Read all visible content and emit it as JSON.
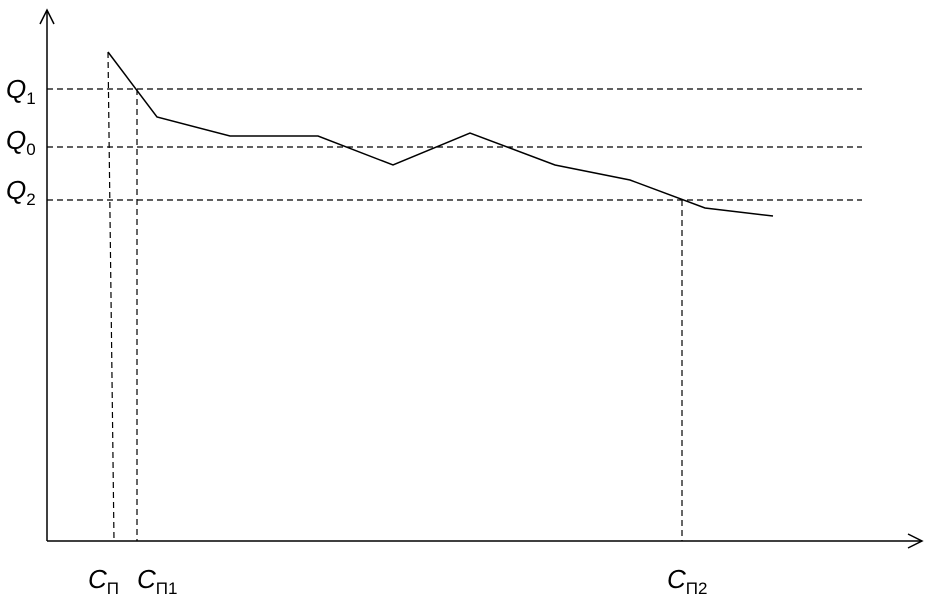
{
  "labels": {
    "q1": {
      "main": "Q",
      "sub": "1"
    },
    "q0": {
      "main": "Q",
      "sub": "0"
    },
    "q2": {
      "main": "Q",
      "sub": "2"
    },
    "cp": {
      "main": "C",
      "sub": "П"
    },
    "cp1": {
      "main": "C",
      "sub": "П1"
    },
    "cp2": {
      "main": "C",
      "sub": "П2"
    }
  }
}
